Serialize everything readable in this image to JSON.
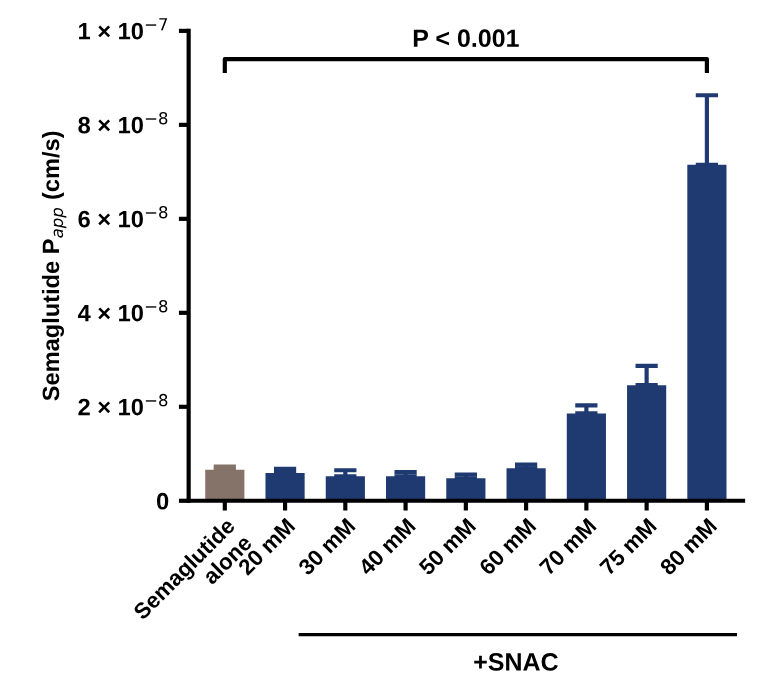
{
  "chart_data": {
    "type": "bar",
    "categories": [
      "Semaglutide\nalone",
      "20 mM",
      "30 mM",
      "40 mM",
      "50 mM",
      "60 mM",
      "70 mM",
      "75 mM",
      "80 mM"
    ],
    "values": [
      6.6e-09,
      5.9e-09,
      5.2e-09,
      5.2e-09,
      4.8e-09,
      6.9e-09,
      1.86e-08,
      2.46e-08,
      7.15e-08
    ],
    "colors": [
      "#857369",
      "#1f3a70",
      "#1f3a70",
      "#1f3a70",
      "#1f3a70",
      "#1f3a70",
      "#1f3a70",
      "#1f3a70",
      "#1f3a70"
    ],
    "errors": [
      [
        6.6e-09,
        7.3e-09
      ],
      [
        5.9e-09,
        6.8e-09
      ],
      [
        5.2e-09,
        6.5e-09
      ],
      [
        5.2e-09,
        6.1e-09
      ],
      [
        4.8e-09,
        5.6e-09
      ],
      [
        6.9e-09,
        7.7e-09
      ],
      [
        1.86e-08,
        2.03e-08
      ],
      [
        2.46e-08,
        2.87e-08
      ],
      [
        7.15e-08,
        8.63e-08
      ]
    ],
    "ylabel": "Semaglutide P$_{app}$ (cm/s)",
    "ylim": [
      0,
      1e-07
    ],
    "yticks": [
      0,
      {
        "value": 2e-08,
        "label": "2 × 10$^{−8}$"
      },
      {
        "value": 4e-08,
        "label": "4 × 10$^{−8}$"
      },
      {
        "value": 6e-08,
        "label": "6 × 10$^{−8}$"
      },
      {
        "value": 8e-08,
        "label": "8 × 10$^{−8}$"
      },
      {
        "value": 1e-07,
        "label": "1 × 10$^{−7}$"
      }
    ],
    "annotations": [
      "P < 0.001",
      "+SNAC"
    ],
    "grid": false,
    "legend": false
  }
}
